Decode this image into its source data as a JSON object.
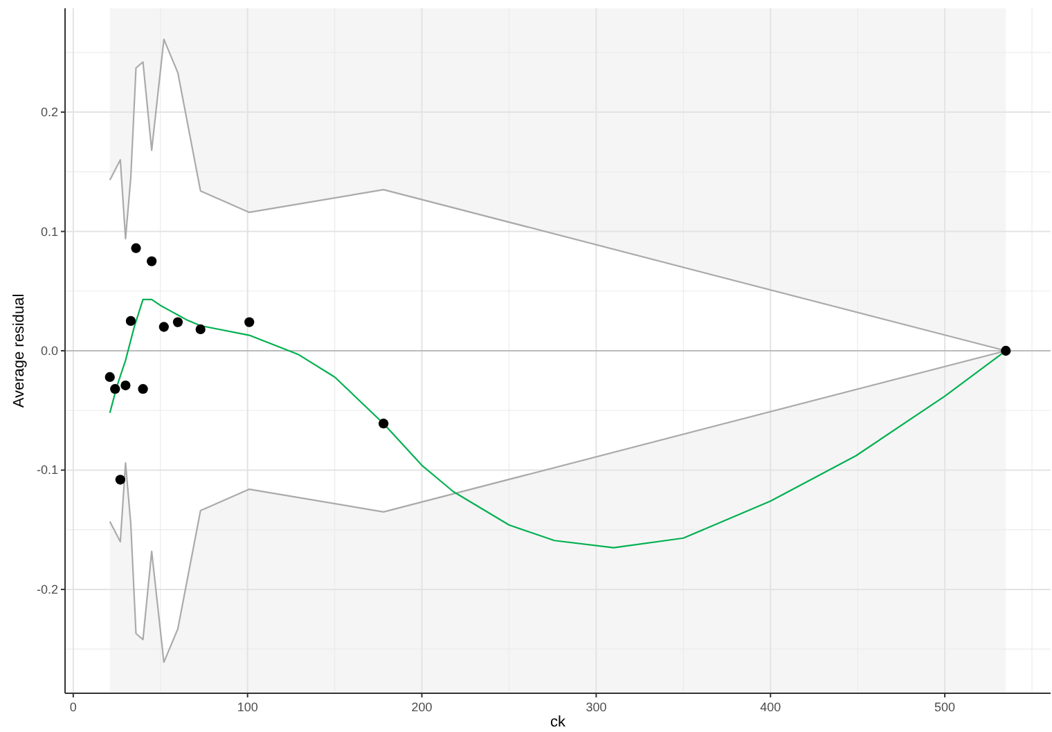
{
  "chart_data": {
    "type": "scatter",
    "xlabel": "ck",
    "ylabel": "Average residual",
    "xlim": [
      -4.7,
      560.7
    ],
    "ylim": [
      -0.287,
      0.287
    ],
    "xticks": [
      0,
      100,
      200,
      300,
      400,
      500
    ],
    "yticks": [
      -0.2,
      -0.1,
      {
        "value": 0,
        "label": "0.0"
      },
      0.1,
      0.2
    ],
    "grid": true,
    "marker": "circle",
    "bands": [
      {
        "axis": "x",
        "from": 21,
        "to": 535,
        "color": "#f5f5f5"
      }
    ],
    "ref_lines": [
      {
        "axis": "y",
        "value": 0,
        "color": "#bbbbbb"
      }
    ],
    "series": [
      {
        "type": "line",
        "marker": "none",
        "color": "#aaaaaa",
        "x": [
          21,
          27,
          30,
          33,
          36,
          40,
          45,
          52,
          60,
          73,
          101,
          178,
          535
        ],
        "values": [
          0.143,
          0.16,
          0.094,
          0.145,
          0.237,
          0.242,
          0.168,
          0.261,
          0.233,
          0.134,
          0.116,
          0.135,
          0
        ],
        "upper": [
          0.143,
          0.16,
          0.094,
          0.145,
          0.237,
          0.242,
          0.168,
          0.261,
          0.233,
          0.134,
          0.116,
          0.135,
          0
        ],
        "lower": [
          -0.143,
          -0.16,
          -0.094,
          -0.145,
          -0.237,
          -0.242,
          -0.168,
          -0.261,
          -0.233,
          -0.134,
          -0.116,
          -0.135,
          0
        ]
      },
      {
        "type": "line",
        "marker": "none",
        "color": "#aaaaaa",
        "x": [
          21,
          27,
          30,
          33,
          36,
          40,
          45,
          52,
          60,
          73,
          101,
          178,
          535
        ],
        "values": [
          -0.143,
          -0.16,
          -0.094,
          -0.145,
          -0.237,
          -0.242,
          -0.168,
          -0.261,
          -0.233,
          -0.134,
          -0.116,
          -0.135,
          0
        ]
      },
      {
        "type": "line",
        "marker": "none",
        "color": "#00b050",
        "x": [
          21,
          25,
          30,
          35,
          40,
          45,
          50,
          55,
          60,
          65,
          73,
          101,
          129,
          150,
          178,
          200,
          218,
          250,
          276,
          310,
          350,
          400,
          449,
          500,
          535
        ],
        "values": [
          -0.052,
          -0.03,
          -0.008,
          0.02,
          0.043,
          0.043,
          0.038,
          0.034,
          0.03,
          0.026,
          0.021,
          0.013,
          -0.003,
          -0.022,
          -0.061,
          -0.096,
          -0.118,
          -0.146,
          -0.159,
          -0.165,
          -0.157,
          -0.126,
          -0.088,
          -0.038,
          0
        ]
      },
      {
        "color": "#000000",
        "x": [
          21,
          24,
          27,
          30,
          33,
          36,
          40,
          45,
          52,
          60,
          73,
          101,
          178,
          535
        ],
        "values": [
          -0.022,
          -0.032,
          -0.108,
          -0.029,
          0.025,
          0.086,
          -0.032,
          0.075,
          0.02,
          0.024,
          0.018,
          0.024,
          -0.061,
          0
        ]
      }
    ]
  }
}
